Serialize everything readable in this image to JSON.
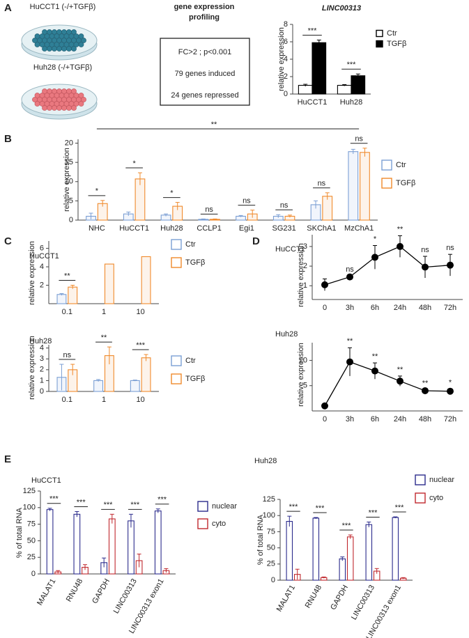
{
  "panel_labels": [
    "A",
    "B",
    "C",
    "D",
    "E"
  ],
  "illustration": {
    "cell_lines": [
      "HuCCT1 (-/+TGFβ)",
      "Huh28 (-/+TGFβ)"
    ],
    "title_lines": [
      "gene expression",
      "profiling"
    ],
    "box_lines": [
      "FC>2 ; p<0.001",
      "79 genes induced",
      "24 genes repressed"
    ]
  },
  "chart_data": [
    {
      "type": "bar",
      "title": "LINC00313",
      "y_label": "relative expression",
      "categories": [
        "HuCCT1",
        "Huh28"
      ],
      "series": [
        {
          "name": "Ctr",
          "color": "#000000",
          "fill": "#ffffff",
          "values": [
            1.0,
            1.0
          ],
          "errors": [
            0.12,
            0.08
          ]
        },
        {
          "name": "TGFβ",
          "color": "#000000",
          "fill": "#000000",
          "values": [
            5.9,
            2.1
          ],
          "errors": [
            0.3,
            0.2
          ]
        }
      ],
      "significance": [
        "***",
        "***"
      ],
      "ylim": [
        0,
        8
      ],
      "yticks": [
        0,
        2,
        4,
        6,
        8
      ]
    },
    {
      "type": "bar",
      "y_label": "relative expression",
      "categories": [
        "NHC",
        "HuCCT1",
        "Huh28",
        "CCLP1",
        "Egi1",
        "SG231",
        "SKChA1",
        "MzChA1"
      ],
      "series": [
        {
          "name": "Ctr",
          "color": "#7b9fd4",
          "fill": "#f1f5fc",
          "values": [
            1.0,
            1.6,
            1.3,
            0.2,
            1.0,
            1.0,
            4.0,
            17.8
          ],
          "errors": [
            0.8,
            0.5,
            0.3,
            0.1,
            0.2,
            0.4,
            1.0,
            0.6
          ]
        },
        {
          "name": "TGFβ",
          "color": "#f08a2c",
          "fill": "#fdf3ea",
          "values": [
            4.3,
            10.7,
            3.6,
            0.2,
            1.6,
            1.0,
            6.2,
            17.6
          ],
          "errors": [
            0.8,
            1.6,
            1.0,
            0.1,
            1.0,
            0.3,
            0.9,
            1.1
          ]
        }
      ],
      "significance": [
        "*",
        "*",
        "*",
        "ns",
        "ns",
        "ns",
        "ns",
        "ns"
      ],
      "annotation": "**",
      "ylim": [
        0,
        21
      ],
      "yticks": [
        0,
        5,
        10,
        15,
        20
      ]
    },
    {
      "type": "bar",
      "title": "HuCCT1",
      "y_label": "relative expression",
      "categories": [
        "0.1",
        "1",
        "10"
      ],
      "series": [
        {
          "name": "Ctr",
          "color": "#7b9fd4",
          "fill": "#f1f5fc",
          "values": [
            1.0,
            null,
            null
          ],
          "errors": [
            0.1,
            null,
            null
          ]
        },
        {
          "name": "TGFβ",
          "color": "#f08a2c",
          "fill": "#fdf3ea",
          "values": [
            1.8,
            4.3,
            5.1
          ],
          "errors": [
            0.2,
            null,
            null
          ]
        }
      ],
      "significance": [
        "**",
        null,
        null
      ],
      "ylim": [
        0,
        6.8
      ],
      "yticks": [
        2,
        4,
        6
      ]
    },
    {
      "type": "bar",
      "title": "Huh28",
      "y_label": "relative expression",
      "categories": [
        "0.1",
        "1",
        "10"
      ],
      "series": [
        {
          "name": "Ctr",
          "color": "#7b9fd4",
          "fill": "#f1f5fc",
          "values": [
            1.3,
            1.0,
            1.0
          ],
          "errors": [
            1.2,
            0.1,
            0.05
          ]
        },
        {
          "name": "TGFβ",
          "color": "#f08a2c",
          "fill": "#fdf3ea",
          "values": [
            2.0,
            3.3,
            3.1
          ],
          "errors": [
            0.5,
            0.8,
            0.3
          ]
        }
      ],
      "significance": [
        "ns",
        "**",
        "***"
      ],
      "ylim": [
        0,
        4.3
      ],
      "yticks": [
        0,
        1,
        2,
        3,
        4
      ]
    },
    {
      "type": "line",
      "title": "HuCCT1",
      "y_label": "relative expression",
      "categories": [
        "0",
        "3h",
        "6h",
        "24h",
        "48h",
        "72h"
      ],
      "color": "#000000",
      "values": [
        1.05,
        1.45,
        2.45,
        3.0,
        1.95,
        2.05
      ],
      "errors": [
        0.3,
        0.05,
        0.6,
        0.55,
        0.55,
        0.55
      ],
      "significance": [
        null,
        "ns",
        "*",
        "**",
        "ns",
        "ns"
      ],
      "ylim": [
        0.3,
        3.6
      ],
      "yticks": [
        1,
        2,
        3
      ]
    },
    {
      "type": "line",
      "title": "Huh28",
      "y_label": "relative expression",
      "categories": [
        "0",
        "3h",
        "6h",
        "24h",
        "48h",
        "72h"
      ],
      "color": "#000000",
      "values": [
        1.0,
        9.7,
        7.9,
        5.9,
        4.0,
        3.9
      ],
      "errors": [
        0.2,
        2.8,
        1.6,
        1.0,
        0.2,
        0.4
      ],
      "significance": [
        null,
        "**",
        "**",
        "**",
        "**",
        "*"
      ],
      "ylim": [
        0,
        13.5
      ],
      "yticks": [
        5,
        10
      ]
    },
    {
      "type": "bar",
      "title": "HuCCT1",
      "y_label": "% of total RNA",
      "categories": [
        "MALAT1",
        "RNU48",
        "GAPDH",
        "LINC00313",
        "LINC00313 exon1"
      ],
      "series": [
        {
          "name": "nuclear",
          "color": "#2b2b8c",
          "fill": "#ffffff",
          "values": [
            97,
            90,
            17,
            80,
            95
          ],
          "errors": [
            2,
            4,
            7,
            10,
            3
          ]
        },
        {
          "name": "cyto",
          "color": "#c0272d",
          "fill": "#ffffff",
          "values": [
            3,
            10,
            83,
            20,
            5
          ],
          "errors": [
            2,
            4,
            7,
            10,
            3
          ]
        }
      ],
      "significance": [
        "***",
        "***",
        "***",
        "***",
        "***"
      ],
      "ylim": [
        0,
        125
      ],
      "yticks": [
        0,
        25,
        50,
        75,
        100,
        125
      ]
    },
    {
      "type": "bar",
      "title": "Huh28",
      "y_label": "% of total RNA",
      "categories": [
        "MALAT1",
        "RNU48",
        "GAPDH",
        "LINC00313",
        "LINC00313 exon1"
      ],
      "series": [
        {
          "name": "nuclear",
          "color": "#2b2b8c",
          "fill": "#ffffff",
          "values": [
            91,
            96,
            33,
            86,
            97
          ],
          "errors": [
            8,
            1,
            3,
            4,
            1
          ]
        },
        {
          "name": "cyto",
          "color": "#c0272d",
          "fill": "#ffffff",
          "values": [
            9,
            4,
            67,
            14,
            3
          ],
          "errors": [
            8,
            1,
            3,
            4,
            1
          ]
        }
      ],
      "significance": [
        "***",
        "***",
        "***",
        "***",
        "***"
      ],
      "ylim": [
        0,
        125
      ],
      "yticks": [
        0,
        25,
        50,
        75,
        100,
        125
      ]
    }
  ]
}
